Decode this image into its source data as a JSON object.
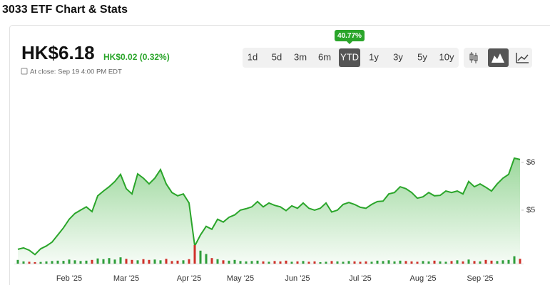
{
  "header": {
    "title": "3033 ETF Chart & Stats",
    "price": "HK$6.18",
    "change": "HK$0.02 (0.32%)",
    "close_note": "At close: Sep 19 4:00 PM EDT"
  },
  "ranges": [
    "1d",
    "5d",
    "3m",
    "6m",
    "YTD",
    "1y",
    "3y",
    "5y",
    "10y"
  ],
  "selected_range": "YTD",
  "range_return": "40.77%",
  "chart_data": {
    "type": "area",
    "color": "#2aa52a",
    "up_color": "#2e9e3a",
    "down_color": "#d0302a",
    "categories": [
      null,
      null,
      null,
      null,
      null,
      null,
      null,
      null,
      null,
      "Feb '25",
      null,
      null,
      null,
      null,
      null,
      null,
      null,
      null,
      null,
      "Mar '25",
      null,
      null,
      null,
      null,
      null,
      null,
      null,
      null,
      null,
      null,
      "Apr '25",
      null,
      null,
      null,
      null,
      null,
      null,
      null,
      null,
      "May '25",
      null,
      null,
      null,
      null,
      null,
      null,
      null,
      null,
      null,
      "Jun '25",
      null,
      null,
      null,
      null,
      null,
      null,
      null,
      null,
      null,
      null,
      "Jul '25",
      null,
      null,
      null,
      null,
      null,
      null,
      null,
      null,
      null,
      null,
      "Aug '25",
      null,
      null,
      null,
      null,
      null,
      null,
      null,
      null,
      null,
      "Sep '25",
      null,
      null,
      null,
      null,
      null,
      null,
      null
    ],
    "values": [
      4.18,
      4.21,
      4.16,
      4.07,
      4.19,
      4.25,
      4.33,
      4.48,
      4.63,
      4.81,
      4.93,
      5.0,
      5.07,
      4.97,
      5.3,
      5.4,
      5.49,
      5.6,
      5.75,
      5.45,
      5.34,
      5.76,
      5.67,
      5.55,
      5.67,
      5.85,
      5.55,
      5.37,
      5.3,
      5.34,
      5.15,
      4.25,
      4.48,
      4.66,
      4.6,
      4.81,
      4.75,
      4.85,
      4.9,
      5.0,
      5.03,
      5.07,
      5.18,
      5.07,
      5.15,
      5.1,
      5.07,
      4.99,
      5.09,
      5.04,
      5.15,
      5.04,
      5.0,
      5.04,
      5.15,
      4.96,
      5.0,
      5.12,
      5.16,
      5.12,
      5.06,
      5.04,
      5.12,
      5.18,
      5.19,
      5.34,
      5.37,
      5.49,
      5.45,
      5.37,
      5.25,
      5.28,
      5.37,
      5.3,
      5.31,
      5.4,
      5.37,
      5.4,
      5.34,
      5.6,
      5.49,
      5.55,
      5.48,
      5.4,
      5.55,
      5.67,
      5.75,
      6.09,
      6.06
    ],
    "volume": [
      20,
      12,
      10,
      8,
      9,
      12,
      14,
      16,
      15,
      22,
      18,
      14,
      16,
      20,
      28,
      24,
      30,
      22,
      34,
      26,
      20,
      18,
      24,
      20,
      22,
      18,
      26,
      14,
      16,
      18,
      24,
      100,
      70,
      52,
      30,
      24,
      18,
      16,
      20,
      14,
      12,
      14,
      16,
      12,
      10,
      14,
      12,
      16,
      10,
      12,
      14,
      10,
      12,
      8,
      10,
      14,
      12,
      10,
      14,
      12,
      10,
      12,
      10,
      16,
      14,
      18,
      12,
      16,
      14,
      12,
      10,
      14,
      12,
      16,
      12,
      10,
      14,
      18,
      12,
      22,
      14,
      12,
      20,
      16,
      14,
      18,
      20,
      40,
      26
    ],
    "ylim": [
      3.88,
      7.76
    ],
    "y2lim": [
      0,
      100
    ],
    "yticks": [
      {
        "value": 5,
        "label": "$5"
      },
      {
        "value": 6,
        "label": "$6"
      }
    ]
  }
}
